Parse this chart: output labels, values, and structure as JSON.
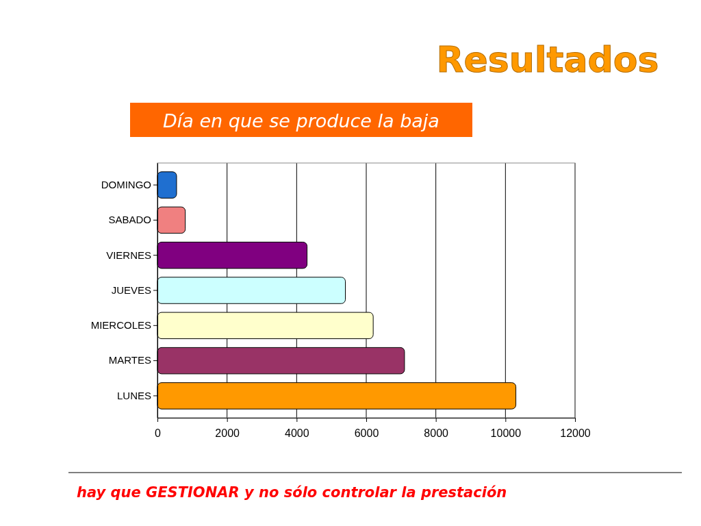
{
  "chart_data": {
    "type": "bar",
    "orientation": "horizontal",
    "title": "Resultados",
    "subtitle": "Día en que se produce la baja",
    "categories": [
      "DOMINGO",
      "SABADO",
      "VIERNES",
      "JUEVES",
      "MIERCOLES",
      "MARTES",
      "LUNES"
    ],
    "values": [
      550,
      800,
      4300,
      5400,
      6200,
      7100,
      10300
    ],
    "colors": [
      "#1f6fd0",
      "#f08080",
      "#800080",
      "#ccffff",
      "#ffffcc",
      "#993366",
      "#ff9900"
    ],
    "xlim": [
      0,
      12000
    ],
    "xticks": [
      0,
      2000,
      4000,
      6000,
      8000,
      10000,
      12000
    ],
    "grid": "x",
    "annotations": [
      "hay que GESTIONAR  y no sólo controlar la prestación"
    ]
  }
}
